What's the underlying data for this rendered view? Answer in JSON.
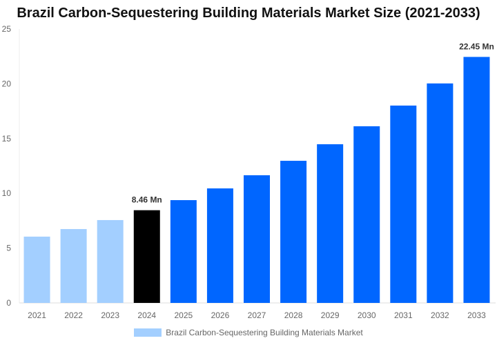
{
  "chart_data": {
    "type": "bar",
    "title": "Brazil Carbon-Sequestering Building Materials Market Size (2021-2033)",
    "categories": [
      "2021",
      "2022",
      "2023",
      "2024",
      "2025",
      "2026",
      "2027",
      "2028",
      "2029",
      "2030",
      "2031",
      "2032",
      "2033"
    ],
    "series": [
      {
        "name": "Brazil Carbon-Sequestering Building Materials Market",
        "values": [
          6.05,
          6.74,
          7.56,
          8.46,
          9.38,
          10.45,
          11.65,
          12.97,
          14.48,
          16.12,
          18.01,
          20.03,
          22.45
        ]
      }
    ],
    "data_labels": {
      "3": "8.46 Mn",
      "12": "22.45 Mn"
    },
    "ylim": [
      0,
      25
    ],
    "yticks": [
      "0",
      "5",
      "10",
      "15",
      "20",
      "25"
    ],
    "xlabel": "",
    "ylabel": "",
    "grid": false,
    "legend": "bottom",
    "colors": {
      "historical": "#a3cfff",
      "base_year": "#000000",
      "forecast": "#0066ff"
    }
  }
}
